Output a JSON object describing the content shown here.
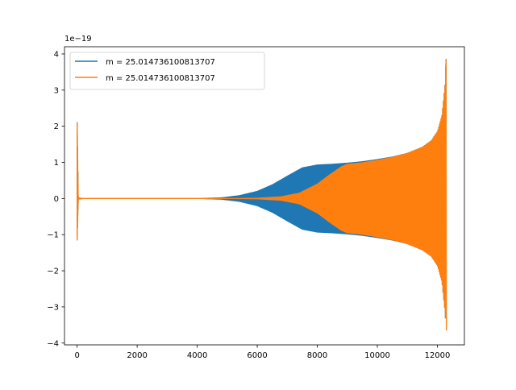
{
  "chart_data": {
    "type": "line",
    "title": "",
    "xlabel": "",
    "ylabel": "",
    "offset_text": "1e−19",
    "xlim": [
      -420,
      12900
    ],
    "ylim": [
      -4.05,
      4.2
    ],
    "xticks": [
      0,
      2000,
      4000,
      6000,
      8000,
      10000,
      12000
    ],
    "xtick_labels": [
      "0",
      "2000",
      "4000",
      "6000",
      "8000",
      "10000",
      "12000"
    ],
    "yticks": [
      -4,
      -3,
      -2,
      -1,
      0,
      1,
      2,
      3,
      4
    ],
    "ytick_labels": [
      "−4",
      "−3",
      "−2",
      "−1",
      "0",
      "1",
      "2",
      "3",
      "4"
    ],
    "grid": false,
    "legend_position": "top-left",
    "series": [
      {
        "name": "m = 25.014736100813707",
        "color": "#1f77b4",
        "envelope_x": [
          0,
          40,
          200,
          4000,
          4800,
          5400,
          6000,
          6500,
          7000,
          7500,
          8000,
          8500,
          9000,
          9500,
          10000,
          10500,
          11000,
          11500,
          11800,
          12000,
          12150,
          12250,
          12290
        ],
        "envelope_upper": [
          2.27,
          0.02,
          0.0,
          0.0,
          0.02,
          0.08,
          0.2,
          0.38,
          0.62,
          0.85,
          0.93,
          0.95,
          0.98,
          1.02,
          1.08,
          1.15,
          1.25,
          1.42,
          1.6,
          1.85,
          2.3,
          3.1,
          3.85
        ],
        "envelope_lower": [
          -1.15,
          -0.02,
          0.0,
          0.0,
          -0.02,
          -0.08,
          -0.2,
          -0.38,
          -0.62,
          -0.85,
          -0.93,
          -0.95,
          -0.98,
          -1.02,
          -1.08,
          -1.15,
          -1.25,
          -1.42,
          -1.6,
          -1.85,
          -2.3,
          -3.1,
          -3.65
        ]
      },
      {
        "name": "m = 25.014736100813707",
        "color": "#ff7f0e",
        "envelope_x": [
          0,
          40,
          200,
          5000,
          6000,
          6800,
          7400,
          8000,
          8400,
          8800,
          9000,
          9500,
          10000,
          10500,
          11000,
          11500,
          11800,
          12000,
          12150,
          12250,
          12290
        ],
        "envelope_upper": [
          2.27,
          0.02,
          0.0,
          0.0,
          0.01,
          0.05,
          0.15,
          0.4,
          0.65,
          0.88,
          0.95,
          0.99,
          1.06,
          1.14,
          1.25,
          1.42,
          1.6,
          1.85,
          2.3,
          3.1,
          3.85
        ],
        "envelope_lower": [
          -1.15,
          -0.02,
          0.0,
          0.0,
          -0.01,
          -0.05,
          -0.15,
          -0.4,
          -0.65,
          -0.88,
          -0.95,
          -0.99,
          -1.06,
          -1.14,
          -1.25,
          -1.42,
          -1.6,
          -1.85,
          -2.3,
          -3.1,
          -3.65
        ]
      }
    ]
  }
}
